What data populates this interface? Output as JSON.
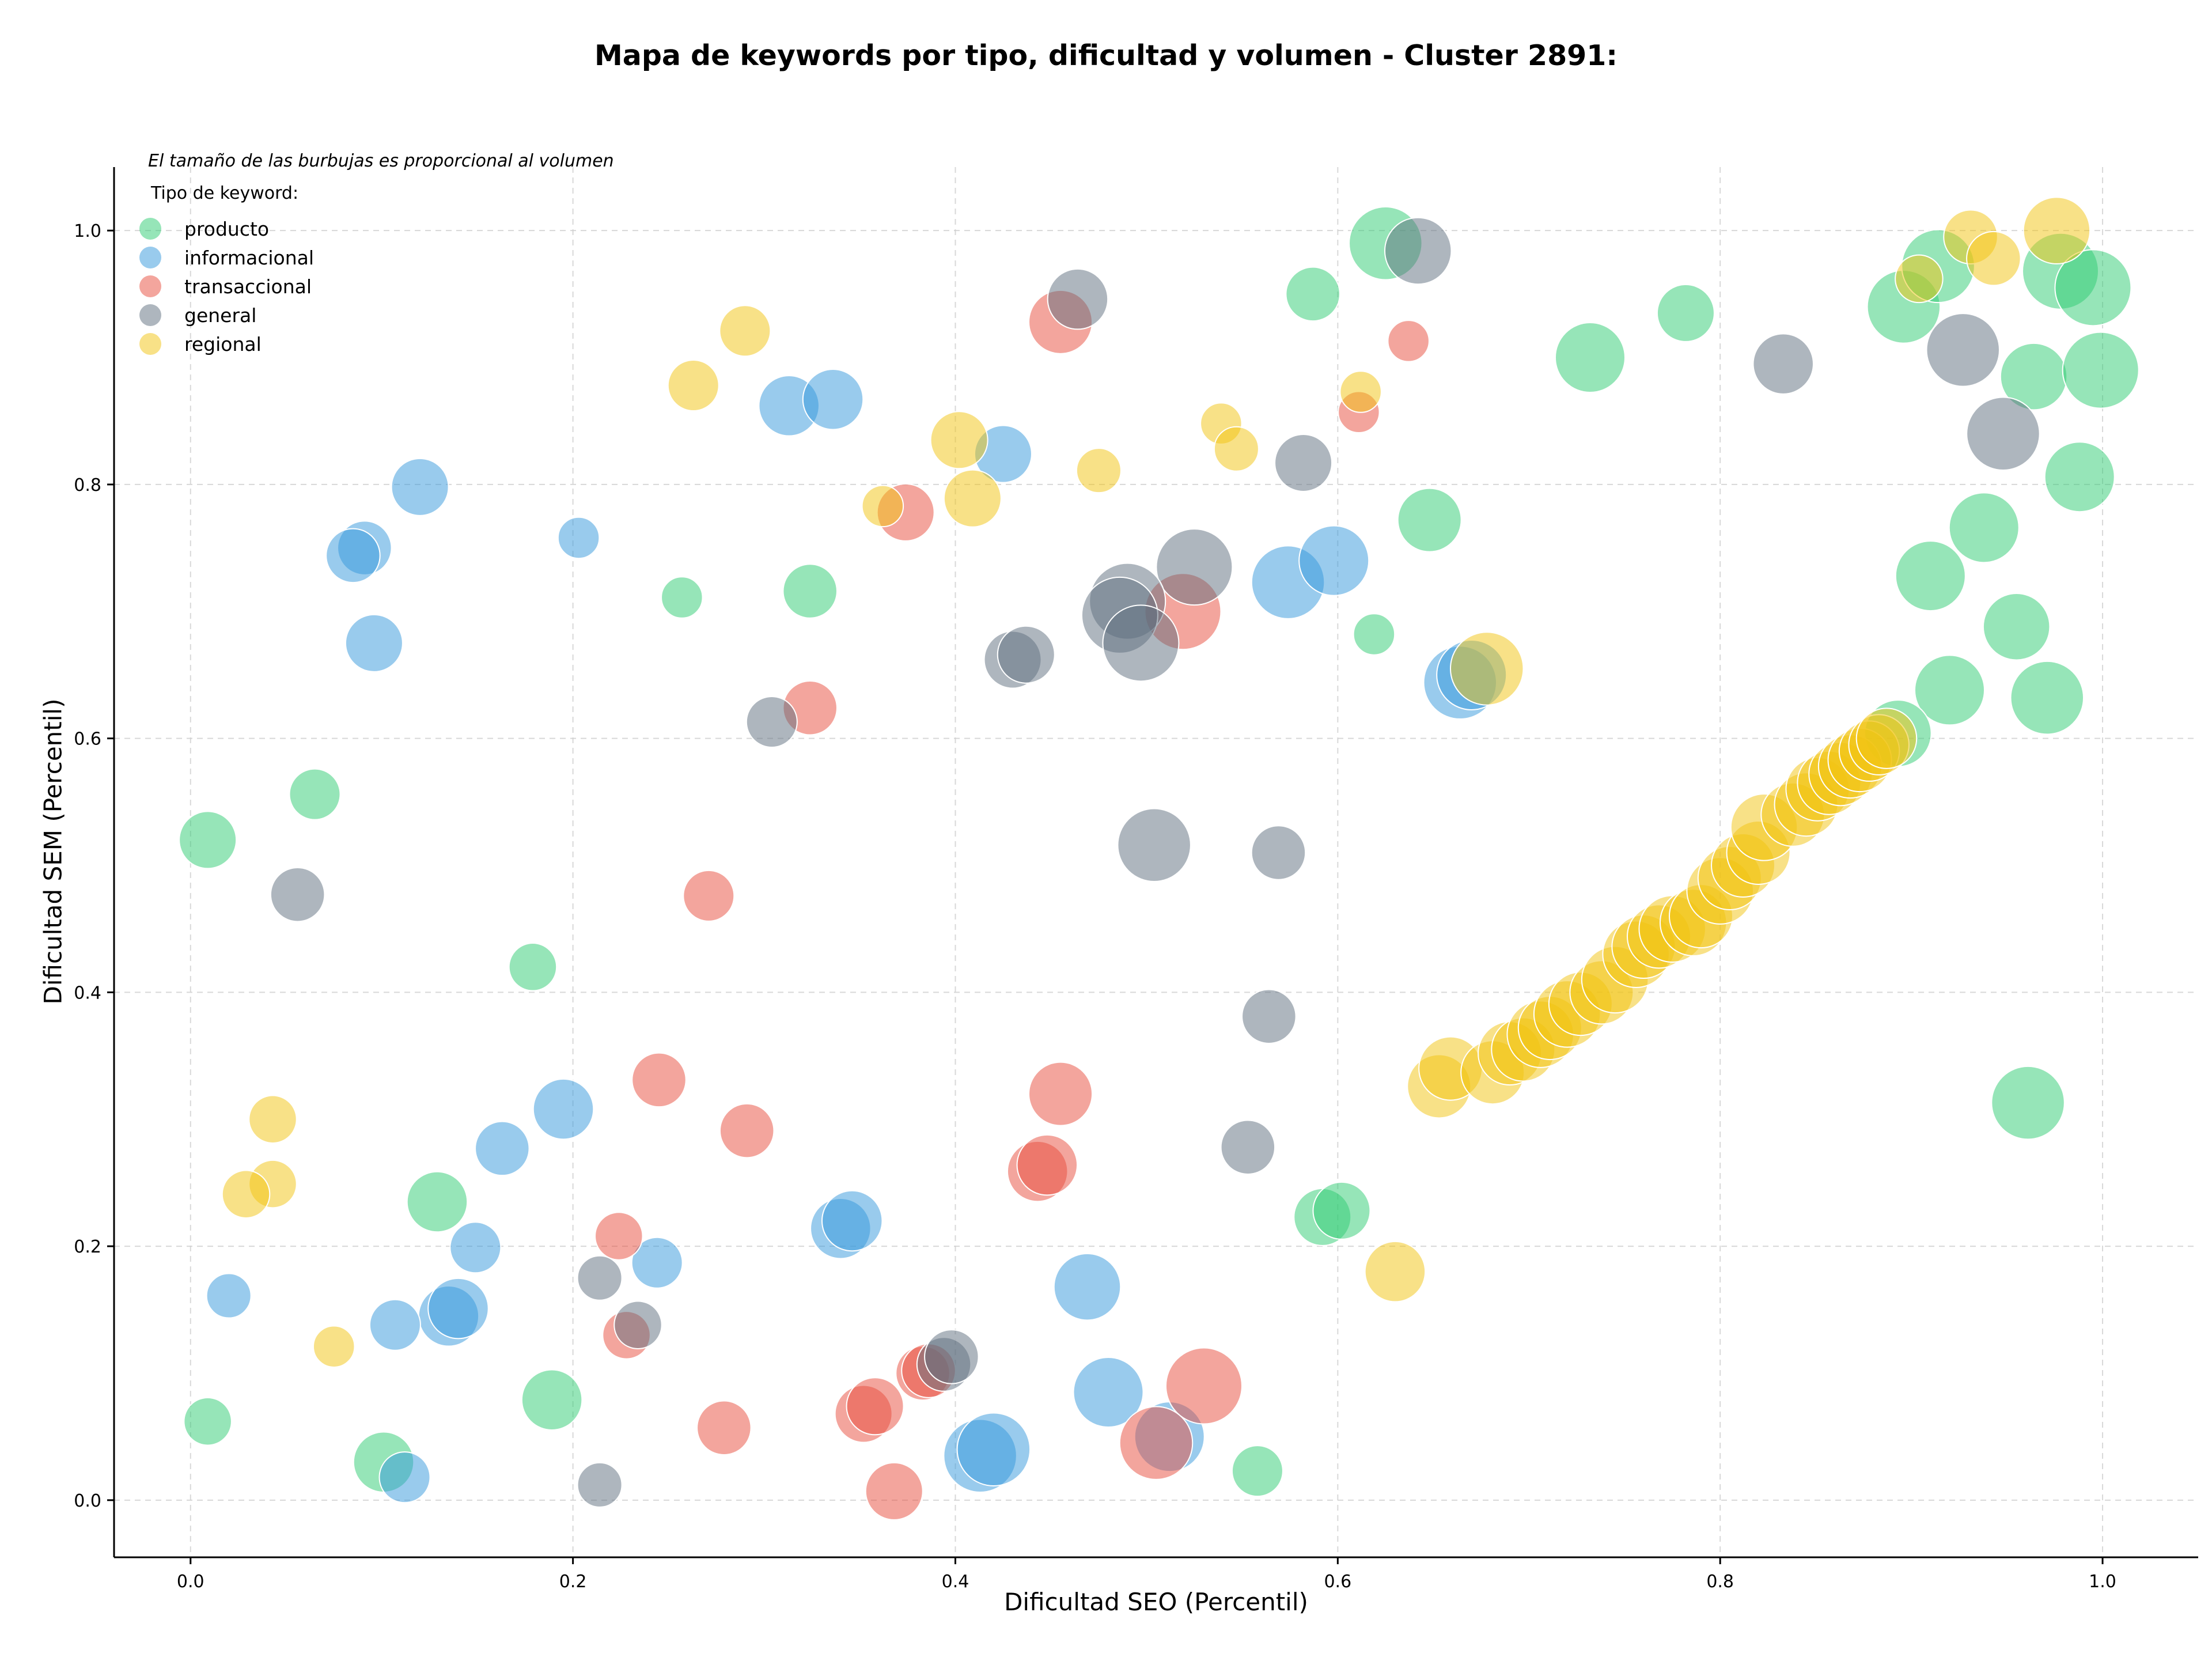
{
  "chart_data": {
    "type": "scatter",
    "title": "Mapa de keywords por tipo, dificultad y volumen - Cluster 2891:",
    "note": "El tamaño de las burbujas es proporcional al volumen",
    "xlabel": "Dificultad SEO (Percentil)",
    "ylabel": "Dificultad SEM (Percentil)",
    "xlim": [
      -0.04,
      1.05
    ],
    "ylim": [
      -0.045,
      1.05
    ],
    "x_ticks": [
      0.0,
      0.2,
      0.4,
      0.6,
      0.8,
      1.0
    ],
    "y_ticks": [
      0.0,
      0.2,
      0.4,
      0.6,
      0.8,
      1.0
    ],
    "x_tick_labels": [
      "0.0",
      "0.2",
      "0.4",
      "0.6",
      "0.8",
      "1.0"
    ],
    "y_tick_labels": [
      "0.0",
      "0.2",
      "0.4",
      "0.6",
      "0.8",
      "1.0"
    ],
    "grid": true,
    "legend": {
      "title": "Tipo de keyword:",
      "placement": "top-left"
    },
    "series": [
      {
        "name": "producto",
        "color": "#2ecc71",
        "points": [
          [
            0.625,
            0.99,
            0.75
          ],
          [
            0.587,
            0.95,
            0.45
          ],
          [
            0.782,
            0.935,
            0.5
          ],
          [
            0.732,
            0.9,
            0.7
          ],
          [
            0.648,
            0.772,
            0.6
          ],
          [
            0.324,
            0.716,
            0.45
          ],
          [
            0.257,
            0.711,
            0.25
          ],
          [
            0.619,
            0.682,
            0.25
          ],
          [
            0.009,
            0.52,
            0.5
          ],
          [
            0.065,
            0.556,
            0.4
          ],
          [
            0.179,
            0.42,
            0.35
          ],
          [
            0.129,
            0.235,
            0.55
          ],
          [
            0.189,
            0.079,
            0.55
          ],
          [
            0.101,
            0.03,
            0.55
          ],
          [
            0.009,
            0.062,
            0.35
          ],
          [
            0.558,
            0.023,
            0.4
          ],
          [
            0.592,
            0.223,
            0.5
          ],
          [
            0.602,
            0.228,
            0.5
          ],
          [
            0.896,
            0.94,
            0.75
          ],
          [
            0.914,
            0.972,
            0.75
          ],
          [
            0.978,
            0.968,
            0.8
          ],
          [
            0.995,
            0.955,
            0.8
          ],
          [
            0.964,
            0.885,
            0.65
          ],
          [
            0.999,
            0.89,
            0.8
          ],
          [
            0.988,
            0.806,
            0.7
          ],
          [
            0.938,
            0.766,
            0.7
          ],
          [
            0.91,
            0.728,
            0.7
          ],
          [
            0.955,
            0.688,
            0.65
          ],
          [
            0.92,
            0.638,
            0.7
          ],
          [
            0.971,
            0.632,
            0.75
          ],
          [
            0.893,
            0.604,
            0.65
          ],
          [
            0.961,
            0.313,
            0.75
          ]
        ]
      },
      {
        "name": "informacional",
        "color": "#3498db",
        "points": [
          [
            0.12,
            0.798,
            0.5
          ],
          [
            0.091,
            0.75,
            0.45
          ],
          [
            0.085,
            0.744,
            0.45
          ],
          [
            0.203,
            0.758,
            0.25
          ],
          [
            0.096,
            0.675,
            0.5
          ],
          [
            0.313,
            0.862,
            0.55
          ],
          [
            0.336,
            0.867,
            0.55
          ],
          [
            0.425,
            0.824,
            0.5
          ],
          [
            0.574,
            0.723,
            0.75
          ],
          [
            0.598,
            0.74,
            0.7
          ],
          [
            0.664,
            0.644,
            0.75
          ],
          [
            0.67,
            0.65,
            0.7
          ],
          [
            0.195,
            0.308,
            0.55
          ],
          [
            0.163,
            0.277,
            0.45
          ],
          [
            0.149,
            0.199,
            0.4
          ],
          [
            0.244,
            0.187,
            0.4
          ],
          [
            0.34,
            0.214,
            0.55
          ],
          [
            0.346,
            0.22,
            0.55
          ],
          [
            0.469,
            0.168,
            0.65
          ],
          [
            0.135,
            0.145,
            0.55
          ],
          [
            0.14,
            0.151,
            0.55
          ],
          [
            0.107,
            0.138,
            0.4
          ],
          [
            0.02,
            0.161,
            0.3
          ],
          [
            0.112,
            0.018,
            0.4
          ],
          [
            0.413,
            0.035,
            0.75
          ],
          [
            0.42,
            0.04,
            0.75
          ],
          [
            0.48,
            0.085,
            0.7
          ],
          [
            0.512,
            0.05,
            0.7
          ]
        ]
      },
      {
        "name": "transaccional",
        "color": "#e74c3c",
        "points": [
          [
            0.455,
            0.928,
            0.6
          ],
          [
            0.637,
            0.913,
            0.25
          ],
          [
            0.611,
            0.857,
            0.25
          ],
          [
            0.374,
            0.778,
            0.5
          ],
          [
            0.519,
            0.7,
            0.8
          ],
          [
            0.324,
            0.624,
            0.45
          ],
          [
            0.271,
            0.476,
            0.4
          ],
          [
            0.455,
            0.32,
            0.6
          ],
          [
            0.245,
            0.331,
            0.45
          ],
          [
            0.291,
            0.291,
            0.45
          ],
          [
            0.443,
            0.259,
            0.55
          ],
          [
            0.448,
            0.264,
            0.55
          ],
          [
            0.224,
            0.208,
            0.35
          ],
          [
            0.228,
            0.13,
            0.35
          ],
          [
            0.279,
            0.057,
            0.45
          ],
          [
            0.352,
            0.068,
            0.5
          ],
          [
            0.358,
            0.074,
            0.5
          ],
          [
            0.383,
            0.1,
            0.45
          ],
          [
            0.386,
            0.102,
            0.45
          ],
          [
            0.368,
            0.007,
            0.5
          ],
          [
            0.505,
            0.045,
            0.75
          ],
          [
            0.53,
            0.09,
            0.8
          ]
        ]
      },
      {
        "name": "general",
        "color": "#5d6d7e",
        "points": [
          [
            0.464,
            0.946,
            0.55
          ],
          [
            0.642,
            0.984,
            0.65
          ],
          [
            0.833,
            0.895,
            0.55
          ],
          [
            0.927,
            0.906,
            0.75
          ],
          [
            0.948,
            0.84,
            0.75
          ],
          [
            0.582,
            0.817,
            0.5
          ],
          [
            0.525,
            0.735,
            0.8
          ],
          [
            0.49,
            0.708,
            0.8
          ],
          [
            0.486,
            0.697,
            0.8
          ],
          [
            0.497,
            0.675,
            0.8
          ],
          [
            0.43,
            0.662,
            0.5
          ],
          [
            0.437,
            0.666,
            0.5
          ],
          [
            0.304,
            0.613,
            0.4
          ],
          [
            0.504,
            0.516,
            0.75
          ],
          [
            0.569,
            0.51,
            0.45
          ],
          [
            0.056,
            0.477,
            0.45
          ],
          [
            0.564,
            0.381,
            0.45
          ],
          [
            0.553,
            0.278,
            0.45
          ],
          [
            0.214,
            0.175,
            0.3
          ],
          [
            0.234,
            0.138,
            0.35
          ],
          [
            0.214,
            0.012,
            0.3
          ],
          [
            0.394,
            0.107,
            0.45
          ],
          [
            0.398,
            0.113,
            0.45
          ]
        ]
      },
      {
        "name": "regional",
        "color": "#f1c40f",
        "points": [
          [
            0.29,
            0.921,
            0.4
          ],
          [
            0.263,
            0.878,
            0.4
          ],
          [
            0.402,
            0.835,
            0.5
          ],
          [
            0.409,
            0.789,
            0.5
          ],
          [
            0.475,
            0.811,
            0.3
          ],
          [
            0.362,
            0.783,
            0.25
          ],
          [
            0.539,
            0.848,
            0.25
          ],
          [
            0.547,
            0.828,
            0.3
          ],
          [
            0.612,
            0.873,
            0.25
          ],
          [
            0.678,
            0.655,
            0.75
          ],
          [
            0.976,
            1.0,
            0.65
          ],
          [
            0.931,
            0.995,
            0.45
          ],
          [
            0.943,
            0.978,
            0.45
          ],
          [
            0.904,
            0.962,
            0.35
          ],
          [
            0.043,
            0.3,
            0.35
          ],
          [
            0.043,
            0.249,
            0.35
          ],
          [
            0.029,
            0.241,
            0.35
          ],
          [
            0.075,
            0.121,
            0.25
          ],
          [
            0.63,
            0.18,
            0.55
          ],
          [
            0.653,
            0.326,
            0.6
          ],
          [
            0.659,
            0.34,
            0.6
          ],
          [
            0.681,
            0.337,
            0.6
          ],
          [
            0.69,
            0.352,
            0.6
          ],
          [
            0.697,
            0.355,
            0.6
          ],
          [
            0.706,
            0.367,
            0.65
          ],
          [
            0.711,
            0.372,
            0.6
          ],
          [
            0.72,
            0.383,
            0.65
          ],
          [
            0.727,
            0.391,
            0.6
          ],
          [
            0.738,
            0.4,
            0.6
          ],
          [
            0.745,
            0.41,
            0.65
          ],
          [
            0.756,
            0.43,
            0.65
          ],
          [
            0.76,
            0.436,
            0.6
          ],
          [
            0.768,
            0.444,
            0.6
          ],
          [
            0.775,
            0.45,
            0.65
          ],
          [
            0.786,
            0.455,
            0.65
          ],
          [
            0.79,
            0.46,
            0.6
          ],
          [
            0.8,
            0.48,
            0.65
          ],
          [
            0.805,
            0.49,
            0.6
          ],
          [
            0.812,
            0.5,
            0.6
          ],
          [
            0.82,
            0.51,
            0.6
          ],
          [
            0.823,
            0.53,
            0.65
          ],
          [
            0.838,
            0.54,
            0.6
          ],
          [
            0.845,
            0.548,
            0.6
          ],
          [
            0.851,
            0.56,
            0.6
          ],
          [
            0.857,
            0.565,
            0.6
          ],
          [
            0.863,
            0.572,
            0.6
          ],
          [
            0.868,
            0.578,
            0.6
          ],
          [
            0.873,
            0.583,
            0.6
          ],
          [
            0.878,
            0.59,
            0.55
          ],
          [
            0.883,
            0.595,
            0.55
          ],
          [
            0.887,
            0.6,
            0.55
          ]
        ]
      }
    ]
  }
}
